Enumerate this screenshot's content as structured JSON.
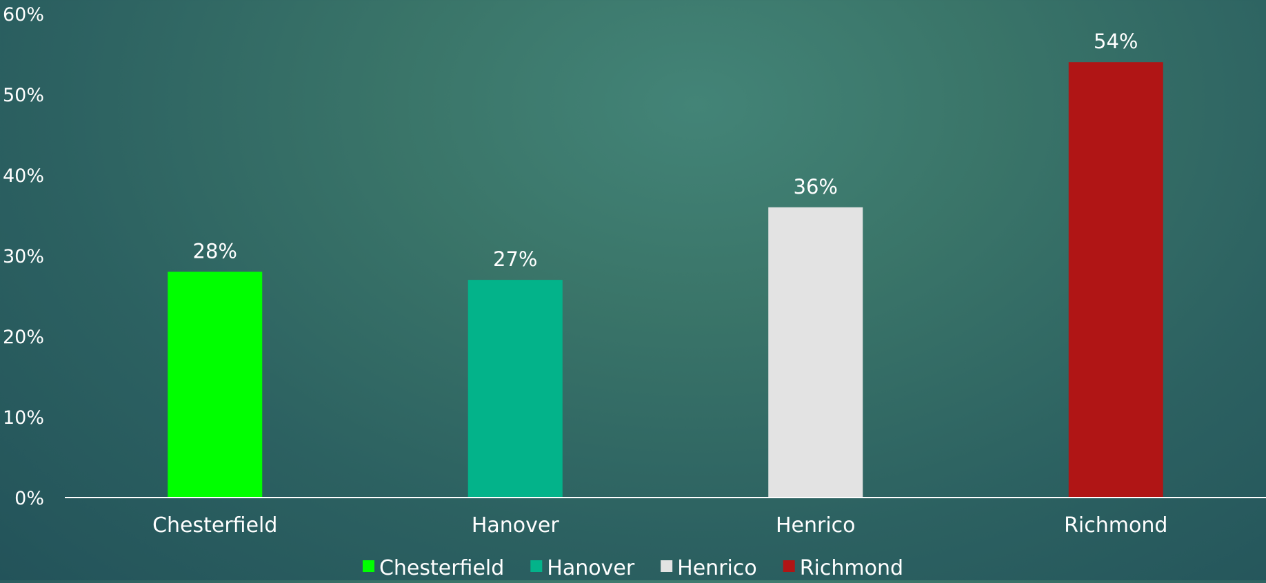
{
  "chart_data": {
    "type": "bar",
    "categories": [
      "Chesterfield",
      "Hanover",
      "Henrico",
      "Richmond"
    ],
    "values": [
      28,
      27,
      36,
      54
    ],
    "value_labels": [
      "28%",
      "27%",
      "36%",
      "54%"
    ],
    "colors": [
      "#00ff00",
      "#03b38a",
      "#e3e3e3",
      "#b01515"
    ],
    "ylim": [
      0,
      60
    ],
    "yticks": [
      0,
      10,
      20,
      30,
      40,
      50,
      60
    ],
    "ytick_labels": [
      "0%",
      "10%",
      "20%",
      "30%",
      "40%",
      "50%",
      "60%"
    ],
    "grid": false,
    "legend": {
      "position": "bottom",
      "entries": [
        "Chesterfield",
        "Hanover",
        "Henrico",
        "Richmond"
      ]
    }
  }
}
